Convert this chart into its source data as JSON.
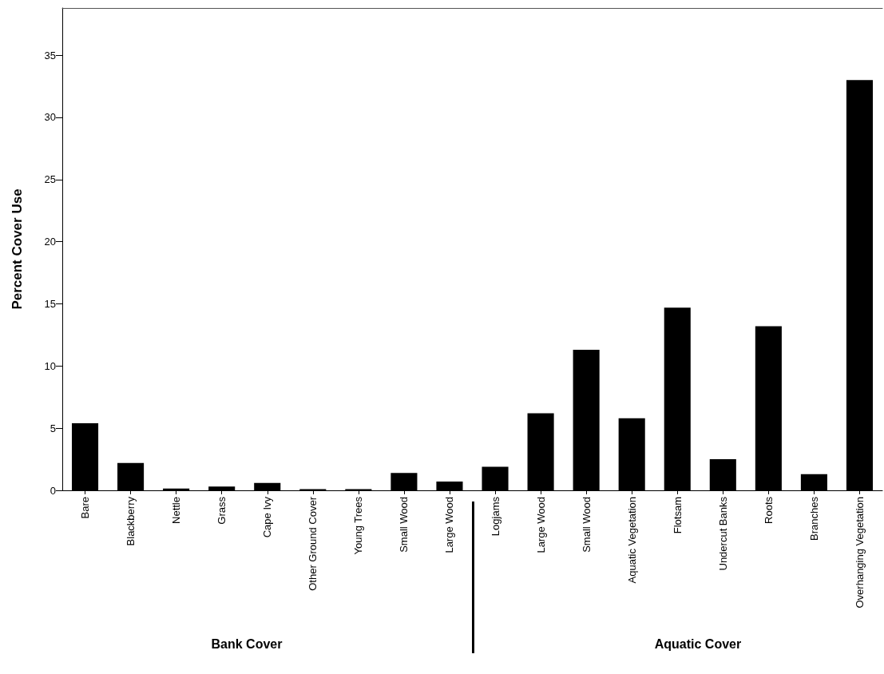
{
  "chart_data": {
    "type": "bar",
    "ylabel": "Percent Cover Use",
    "categories": [
      "Bare",
      "Blackberry",
      "Nettle",
      "Grass",
      "Cape Ivy",
      "Other Ground Cover",
      "Young Trees",
      "Small Wood",
      "Large Wood",
      "Logjams",
      "Large Wood",
      "Small Wood",
      "Aquatic Vegetation",
      "Flotsam",
      "Undercut Banks",
      "Roots",
      "Branches",
      "Overhanging Vegetation"
    ],
    "values": [
      5.4,
      2.2,
      0.15,
      0.3,
      0.6,
      0.1,
      0.1,
      1.4,
      0.7,
      1.9,
      6.2,
      11.3,
      5.8,
      14.7,
      2.5,
      13.2,
      1.3,
      33.0
    ],
    "color": "#000000",
    "ylim": [
      0,
      38.8
    ],
    "yticks": [
      0,
      5,
      10,
      15,
      20,
      25,
      30,
      35
    ],
    "grid": false,
    "annotations": [
      "Bank Cover",
      "Aquatic Cover"
    ]
  }
}
